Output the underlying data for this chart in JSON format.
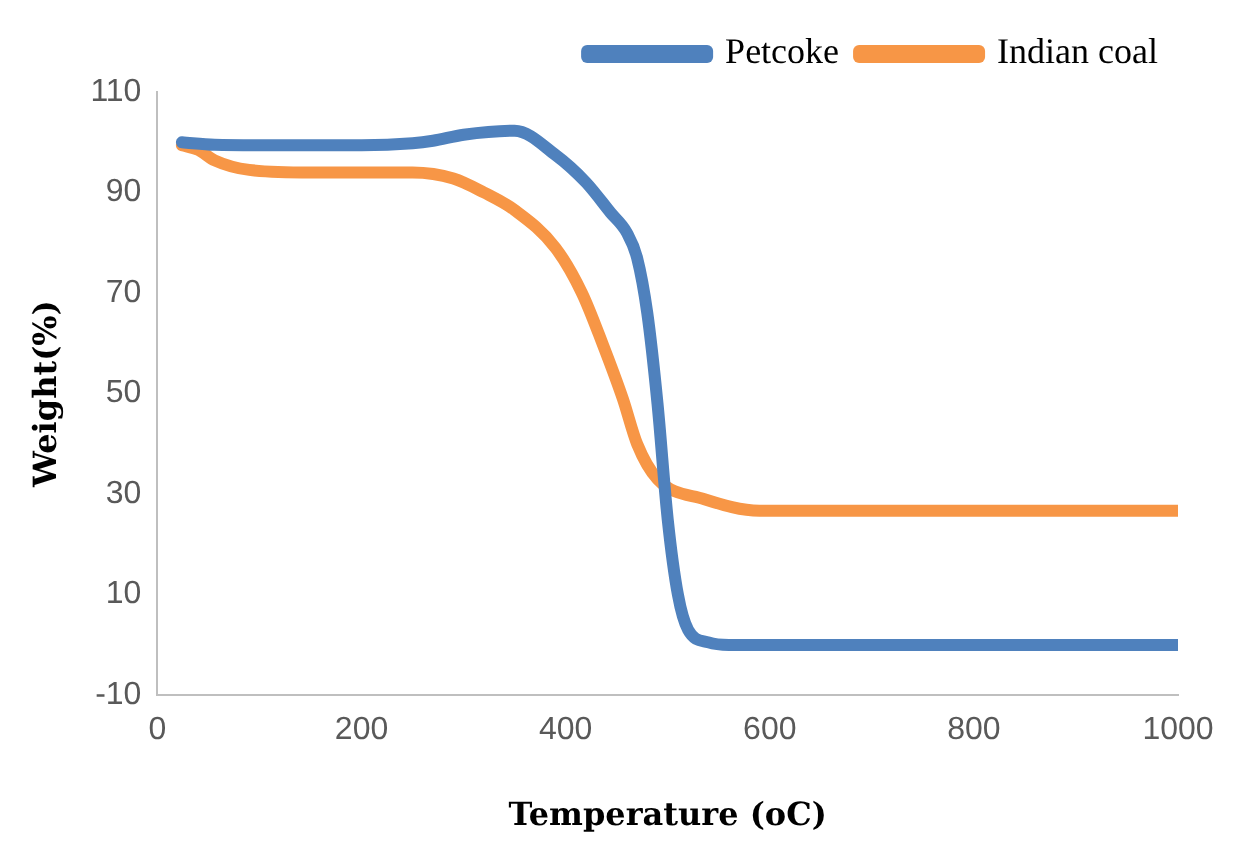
{
  "chart_data": {
    "type": "line",
    "xlabel": "Temperature (oC)",
    "ylabel": "Weight(%)",
    "xlim": [
      0,
      1000
    ],
    "xticks": [
      0,
      200,
      400,
      600,
      800,
      1000
    ],
    "ylim": [
      -10,
      110
    ],
    "yticks": [
      -10,
      10,
      30,
      50,
      70,
      90,
      110
    ],
    "grid": false,
    "legend": "top right",
    "marker": "none",
    "series": [
      {
        "name": "Petcoke",
        "color": "#4f81bd",
        "x": [
          24,
          56,
          100,
          200,
          250,
          270,
          300,
          350,
          390,
          420,
          444,
          460,
          470,
          480,
          490,
          500,
          510,
          520,
          540,
          560,
          700,
          850,
          1000
        ],
        "values": [
          100,
          99.5,
          99.4,
          99.4,
          99.8,
          100.3,
          101.5,
          102.3,
          97.5,
          92,
          86,
          82,
          77,
          66,
          48,
          25,
          10,
          3,
          0.5,
          0,
          0,
          0,
          0
        ]
      },
      {
        "name": "Indian coal",
        "color": "#f79646",
        "x": [
          24,
          40,
          56,
          90,
          150,
          200,
          250,
          290,
          320,
          350,
          390,
          416,
          436,
          456,
          470,
          490,
          536,
          590,
          700,
          850,
          1000
        ],
        "values": [
          99.4,
          98.5,
          96.4,
          94.5,
          94,
          94,
          94,
          92.8,
          90,
          86.5,
          79,
          70,
          60,
          49,
          40,
          33,
          29,
          26.7,
          26.7,
          26.7,
          26.7
        ]
      }
    ]
  }
}
